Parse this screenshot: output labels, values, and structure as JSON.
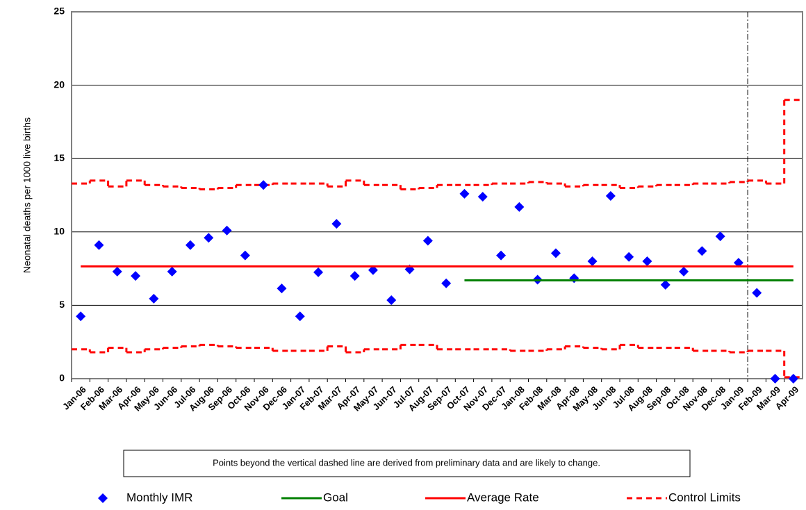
{
  "chart_data": {
    "type": "control",
    "y_label": "Neonatal deaths per 1000 live births",
    "annotation": "Points beyond the vertical dashed line are derived from preliminary data and are likely to change.",
    "categories": [
      "Jan-06",
      "Feb-06",
      "Mar-06",
      "Apr-06",
      "May-06",
      "Jun-06",
      "Jul-06",
      "Aug-06",
      "Sep-06",
      "Oct-06",
      "Nov-06",
      "Dec-06",
      "Jan-07",
      "Feb-07",
      "Mar-07",
      "Apr-07",
      "May-07",
      "Jun-07",
      "Jul-07",
      "Aug-07",
      "Sep-07",
      "Oct-07",
      "Nov-07",
      "Dec-07",
      "Jan-08",
      "Feb-08",
      "Mar-08",
      "Apr-08",
      "May-08",
      "Jun-08",
      "Jul-08",
      "Aug-08",
      "Sep-08",
      "Oct-08",
      "Nov-08",
      "Dec-08",
      "Jan-09",
      "Feb-09",
      "Mar-09",
      "Apr-09"
    ],
    "series": [
      {
        "name": "Monthly IMR",
        "color": "#0000ff",
        "marker": "diamond",
        "values": [
          4.25,
          9.1,
          7.3,
          7.0,
          5.45,
          7.3,
          9.1,
          9.6,
          10.1,
          8.4,
          13.2,
          6.15,
          4.25,
          7.25,
          10.55,
          7.0,
          7.4,
          5.35,
          7.45,
          9.4,
          6.5,
          12.6,
          12.4,
          8.4,
          11.7,
          6.75,
          8.55,
          6.85,
          8.0,
          12.45,
          8.3,
          8.0,
          6.4,
          7.3,
          8.7,
          9.7,
          7.9,
          5.85,
          0,
          0
        ]
      },
      {
        "name": "Goal",
        "color": "#008000",
        "line": "solid",
        "values": [
          null,
          null,
          null,
          null,
          null,
          null,
          null,
          null,
          null,
          null,
          null,
          null,
          null,
          null,
          null,
          null,
          null,
          null,
          null,
          null,
          null,
          6.7,
          6.7,
          6.7,
          6.7,
          6.7,
          6.7,
          6.7,
          6.7,
          6.7,
          6.7,
          6.7,
          6.7,
          6.7,
          6.7,
          6.7,
          6.7,
          6.7,
          6.7,
          6.7
        ]
      },
      {
        "name": "Average Rate",
        "color": "#ff0000",
        "line": "solid",
        "values": [
          7.65,
          7.65,
          7.65,
          7.65,
          7.65,
          7.65,
          7.65,
          7.65,
          7.65,
          7.65,
          7.65,
          7.65,
          7.65,
          7.65,
          7.65,
          7.65,
          7.65,
          7.65,
          7.65,
          7.65,
          7.65,
          7.65,
          7.65,
          7.65,
          7.65,
          7.65,
          7.65,
          7.65,
          7.65,
          7.65,
          7.65,
          7.65,
          7.65,
          7.65,
          7.65,
          7.65,
          7.65,
          7.65,
          7.65,
          7.65
        ]
      }
    ],
    "control_limits": {
      "name": "Control Limits",
      "color": "#ff0000",
      "line": "dashed",
      "upper": [
        13.3,
        13.5,
        13.1,
        13.5,
        13.2,
        13.1,
        13.0,
        12.9,
        13.0,
        13.2,
        13.2,
        13.3,
        13.3,
        13.3,
        13.1,
        13.5,
        13.2,
        13.2,
        12.9,
        13.0,
        13.2,
        13.2,
        13.2,
        13.3,
        13.3,
        13.4,
        13.3,
        13.1,
        13.2,
        13.2,
        13.0,
        13.1,
        13.2,
        13.2,
        13.3,
        13.3,
        13.4,
        13.5,
        13.3,
        19.0
      ],
      "lower": [
        2.0,
        1.8,
        2.1,
        1.8,
        2.0,
        2.1,
        2.2,
        2.3,
        2.2,
        2.1,
        2.1,
        1.9,
        1.9,
        1.9,
        2.2,
        1.8,
        2.0,
        2.0,
        2.3,
        2.3,
        2.0,
        2.0,
        2.0,
        2.0,
        1.9,
        1.9,
        2.0,
        2.2,
        2.1,
        2.0,
        2.3,
        2.1,
        2.1,
        2.1,
        1.9,
        1.9,
        1.8,
        1.9,
        1.9,
        0.1
      ]
    },
    "ylim": [
      0,
      25
    ],
    "yticks": [
      0,
      5,
      10,
      15,
      20,
      25
    ],
    "grid": true
  }
}
